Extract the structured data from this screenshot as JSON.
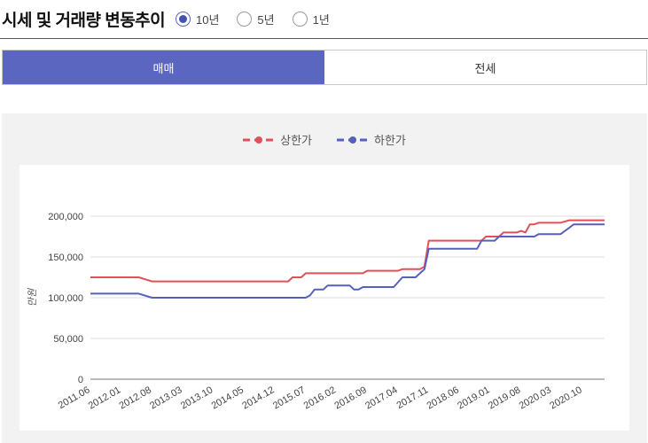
{
  "header": {
    "title": "시세 및 거래량 변동추이",
    "radios": [
      {
        "label": "10년",
        "checked": true
      },
      {
        "label": "5년",
        "checked": false
      },
      {
        "label": "1년",
        "checked": false
      }
    ]
  },
  "tabs": [
    {
      "label": "매매",
      "active": true
    },
    {
      "label": "전세",
      "active": false
    }
  ],
  "colors": {
    "upper": "#e0505a",
    "lower": "#5560bd",
    "accent": "#5b66c1"
  },
  "chart_data": {
    "type": "line",
    "ylabel": "만원",
    "ylim": [
      0,
      200000
    ],
    "yticks": [
      "200,000",
      "150,000",
      "100,000",
      "50,000",
      "0"
    ],
    "x_tick_labels": [
      "2011.06",
      "2012.01",
      "2012.08",
      "2013.03",
      "2013.10",
      "2014.05",
      "2014.12",
      "2015.07",
      "2016.02",
      "2016.09",
      "2017.04",
      "2017.11",
      "2018.06",
      "2019.01",
      "2019.08",
      "2020.03",
      "2020.10"
    ],
    "x_range": [
      "2011.06",
      "2021.03"
    ],
    "legend": "top-center",
    "series": [
      {
        "name": "상한가",
        "color": "#e0505a",
        "points": [
          [
            "2011.06",
            125000
          ],
          [
            "2012.05",
            125000
          ],
          [
            "2012.08",
            120000
          ],
          [
            "2015.03",
            120000
          ],
          [
            "2015.04",
            125000
          ],
          [
            "2015.06",
            125000
          ],
          [
            "2015.07",
            130000
          ],
          [
            "2016.08",
            130000
          ],
          [
            "2016.09",
            133000
          ],
          [
            "2017.04",
            133000
          ],
          [
            "2017.05",
            135000
          ],
          [
            "2017.09",
            135000
          ],
          [
            "2017.10",
            138000
          ],
          [
            "2017.11",
            170000
          ],
          [
            "2018.11",
            170000
          ],
          [
            "2018.12",
            175000
          ],
          [
            "2019.03",
            175000
          ],
          [
            "2019.04",
            180000
          ],
          [
            "2019.07",
            180000
          ],
          [
            "2019.08",
            182000
          ],
          [
            "2019.09",
            180000
          ],
          [
            "2019.10",
            190000
          ],
          [
            "2019.11",
            190000
          ],
          [
            "2019.12",
            192000
          ],
          [
            "2020.05",
            192000
          ],
          [
            "2020.07",
            195000
          ],
          [
            "2021.03",
            195000
          ]
        ]
      },
      {
        "name": "하한가",
        "color": "#5560bd",
        "points": [
          [
            "2011.06",
            105000
          ],
          [
            "2012.05",
            105000
          ],
          [
            "2012.08",
            100000
          ],
          [
            "2015.07",
            100000
          ],
          [
            "2015.08",
            103000
          ],
          [
            "2015.09",
            110000
          ],
          [
            "2015.11",
            110000
          ],
          [
            "2015.12",
            115000
          ],
          [
            "2016.05",
            115000
          ],
          [
            "2016.06",
            110000
          ],
          [
            "2016.07",
            110000
          ],
          [
            "2016.08",
            113000
          ],
          [
            "2017.03",
            113000
          ],
          [
            "2017.05",
            125000
          ],
          [
            "2017.08",
            125000
          ],
          [
            "2017.10",
            135000
          ],
          [
            "2017.11",
            160000
          ],
          [
            "2018.10",
            160000
          ],
          [
            "2018.11",
            170000
          ],
          [
            "2019.02",
            170000
          ],
          [
            "2019.03",
            175000
          ],
          [
            "2019.11",
            175000
          ],
          [
            "2019.12",
            178000
          ],
          [
            "2020.05",
            178000
          ],
          [
            "2020.06",
            182000
          ],
          [
            "2020.08",
            190000
          ],
          [
            "2021.03",
            190000
          ]
        ]
      }
    ]
  }
}
